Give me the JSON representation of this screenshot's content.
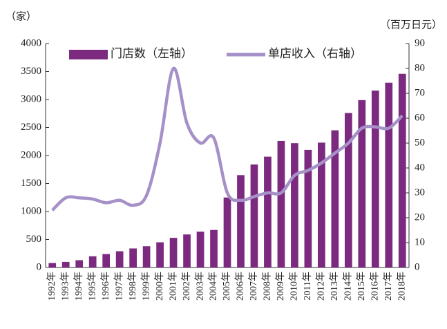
{
  "chart_data": {
    "type": "bar_line",
    "y_label": "（家）",
    "y2_label": "（百万日元）",
    "categories": [
      "1992年",
      "1993年",
      "1994年",
      "1995年",
      "1996年",
      "1997年",
      "1998年",
      "1999年",
      "2000年",
      "2001年",
      "2002年",
      "2003年",
      "2004年",
      "2005年",
      "2006年",
      "2007年",
      "2008年",
      "2009年",
      "2010年",
      "2011年",
      "2012年",
      "2013年",
      "2014年",
      "2015年",
      "2016年",
      "2017年",
      "2018年"
    ],
    "series": [
      {
        "name": "门店数（左轴）",
        "type": "bar",
        "color": "#7b2a7f",
        "axis": "y",
        "values": [
          80,
          100,
          130,
          200,
          240,
          290,
          340,
          380,
          450,
          530,
          590,
          640,
          670,
          1250,
          1650,
          1840,
          1980,
          2260,
          2220,
          2100,
          2230,
          2450,
          2760,
          2990,
          3160,
          3300,
          3460
        ]
      },
      {
        "name": "单店收入（右轴）",
        "type": "line",
        "color": "#a690c8",
        "axis": "y2",
        "values": [
          23,
          28,
          28,
          27.5,
          26,
          27,
          25,
          29,
          50,
          80,
          58,
          50,
          52,
          30,
          27,
          28.5,
          30,
          30,
          37,
          39,
          42,
          46,
          50,
          56,
          56.5,
          56,
          61
        ]
      }
    ],
    "ylim": [
      0,
      4000
    ],
    "yticks": [
      0,
      500,
      1000,
      1500,
      2000,
      2500,
      3000,
      3500,
      4000
    ],
    "y2lim": [
      0,
      90
    ],
    "y2ticks": [
      0,
      10,
      20,
      30,
      40,
      50,
      60,
      70,
      80,
      90
    ],
    "legend": "top"
  }
}
